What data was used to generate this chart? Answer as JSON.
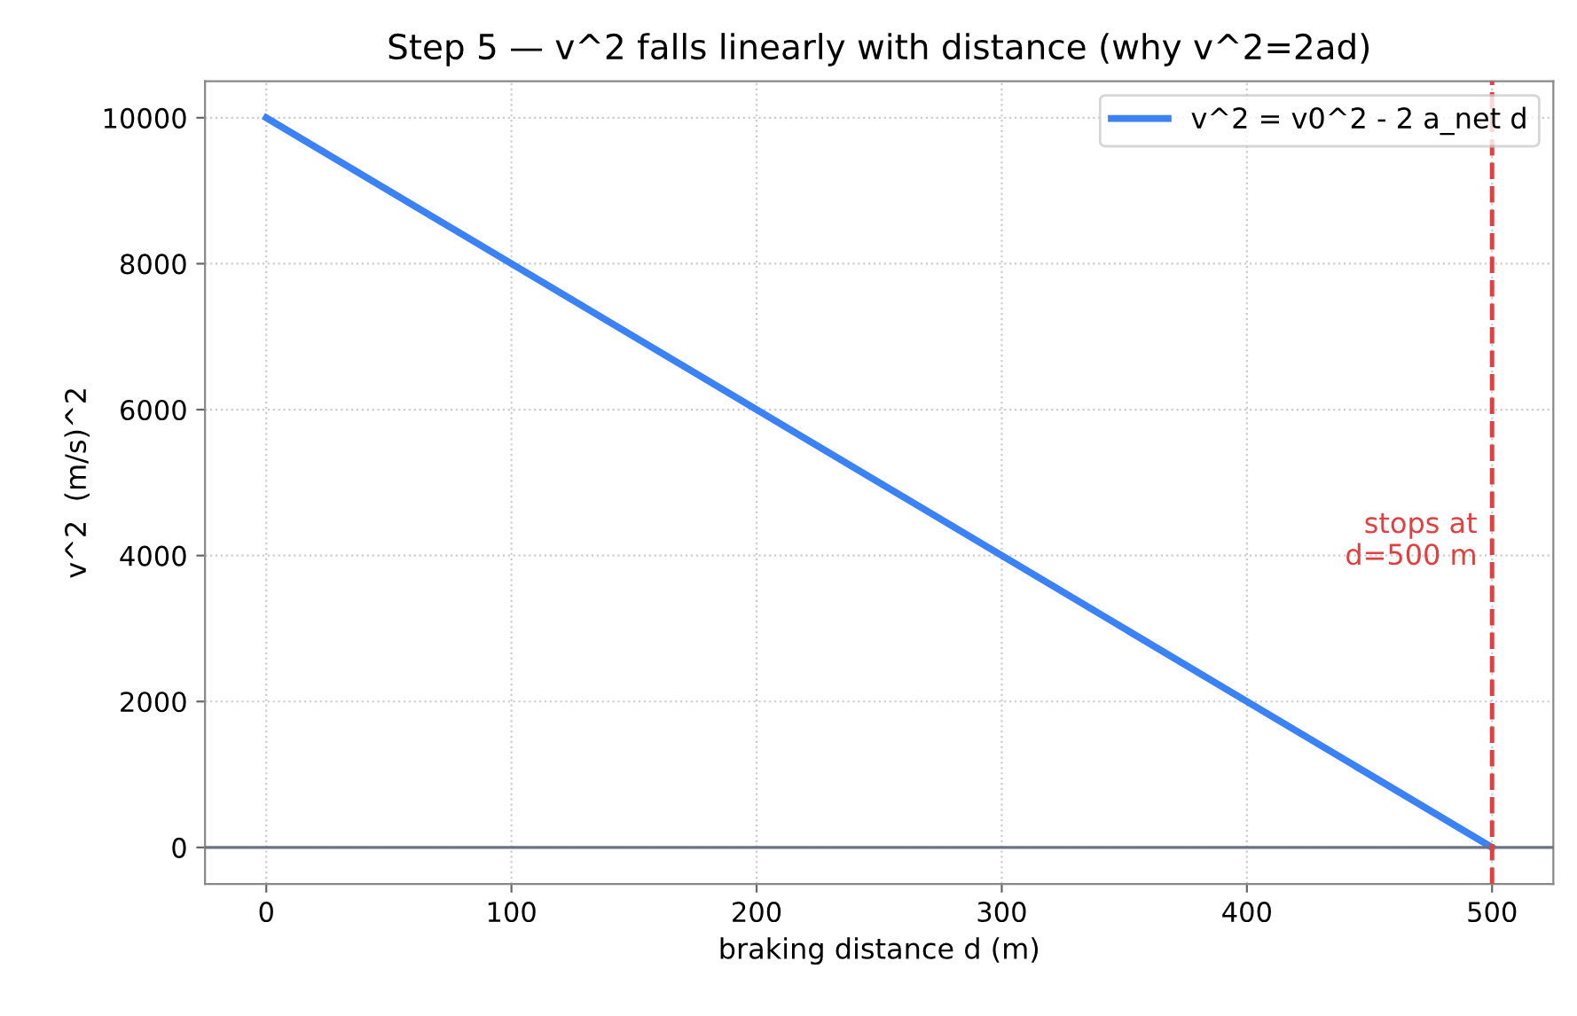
{
  "chart_data": {
    "type": "line",
    "title": "Step 5 — v^2 falls linearly with distance (why v^2=2ad)",
    "xlabel": "braking distance d (m)",
    "ylabel": "v^2  (m/s)^2",
    "x": [
      0,
      500
    ],
    "series": [
      {
        "name": "v^2 = v0^2 - 2 a_net d",
        "color": "#3b82f6",
        "values": [
          10000,
          0
        ]
      }
    ],
    "xlim": [
      -25,
      525
    ],
    "ylim": [
      -500,
      10500
    ],
    "xticks": [
      0,
      100,
      200,
      300,
      400,
      500
    ],
    "yticks": [
      0,
      2000,
      4000,
      6000,
      8000,
      10000
    ],
    "ref_lines": [
      {
        "axis": "y",
        "value": 0,
        "color": "#6b7280",
        "line_style": "solid"
      },
      {
        "axis": "x",
        "value": 500,
        "label": "stops at\nd=500 m",
        "color": "#e0403f",
        "line_style": "dashed"
      }
    ],
    "grid": true,
    "legend": "top right",
    "line_style": "solid",
    "marker": "none"
  }
}
